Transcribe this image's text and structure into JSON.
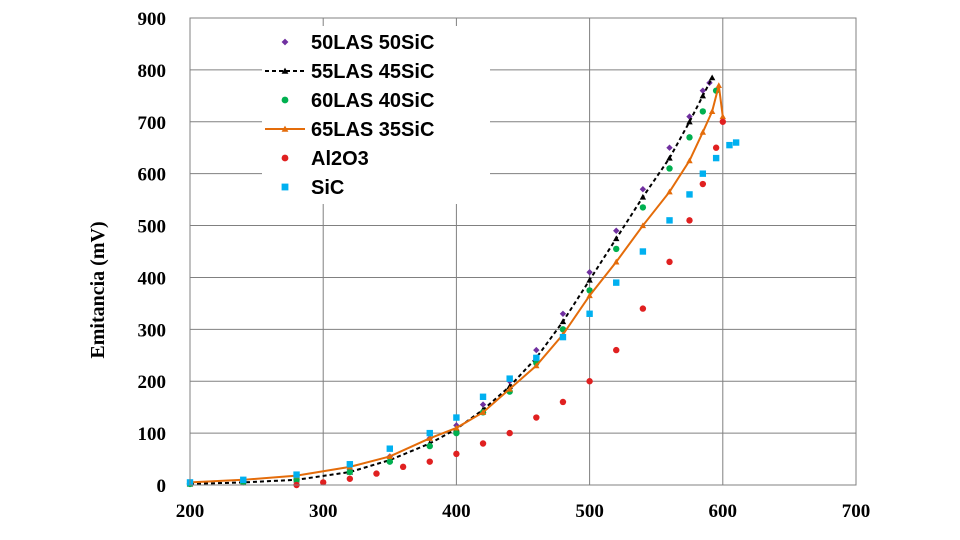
{
  "chart_data": {
    "type": "scatter",
    "title": "",
    "xlabel": "",
    "ylabel": "Emitancia (mV)",
    "xlim": [
      200,
      700
    ],
    "ylim": [
      0,
      900
    ],
    "x_ticks": [
      200,
      300,
      400,
      500,
      600,
      700
    ],
    "y_ticks": [
      0,
      100,
      200,
      300,
      400,
      500,
      600,
      700,
      800,
      900
    ],
    "grid": true,
    "legend_position": "top-left",
    "series": [
      {
        "name": "50LAS 50SiC",
        "color": "#7030A0",
        "marker": "diamond",
        "line": false,
        "x": [
          200,
          240,
          280,
          320,
          350,
          380,
          400,
          420,
          440,
          460,
          480,
          500,
          520,
          540,
          560,
          575,
          585,
          590
        ],
        "y": [
          3,
          6,
          12,
          30,
          55,
          90,
          115,
          155,
          200,
          260,
          330,
          410,
          490,
          570,
          650,
          710,
          760,
          775
        ]
      },
      {
        "name": "55LAS 45SiC",
        "color": "#000000",
        "marker": "triangle",
        "line": true,
        "dash": true,
        "x": [
          200,
          240,
          280,
          320,
          350,
          380,
          400,
          420,
          440,
          460,
          480,
          500,
          520,
          540,
          560,
          575,
          585,
          592
        ],
        "y": [
          2,
          5,
          10,
          25,
          48,
          80,
          108,
          145,
          190,
          245,
          315,
          395,
          475,
          555,
          630,
          700,
          750,
          785
        ]
      },
      {
        "name": "60LAS 40SiC",
        "color": "#00B050",
        "marker": "circle",
        "line": false,
        "x": [
          200,
          240,
          280,
          320,
          350,
          380,
          400,
          420,
          440,
          460,
          480,
          500,
          520,
          540,
          560,
          575,
          585,
          595
        ],
        "y": [
          2,
          5,
          10,
          25,
          45,
          75,
          100,
          140,
          180,
          235,
          300,
          375,
          455,
          535,
          610,
          670,
          720,
          760
        ]
      },
      {
        "name": "65LAS 35SiC",
        "color": "#E46C0A",
        "marker": "triangle",
        "line": true,
        "dash": false,
        "x": [
          200,
          240,
          280,
          320,
          350,
          380,
          400,
          420,
          440,
          460,
          480,
          500,
          520,
          540,
          560,
          575,
          585,
          592,
          597,
          600
        ],
        "y": [
          5,
          10,
          18,
          35,
          55,
          90,
          110,
          140,
          185,
          230,
          290,
          365,
          430,
          500,
          565,
          625,
          680,
          720,
          770,
          710
        ]
      },
      {
        "name": "Al2O3",
        "color": "#E02020",
        "marker": "circle",
        "line": false,
        "x": [
          280,
          300,
          320,
          340,
          360,
          380,
          400,
          420,
          440,
          460,
          480,
          500,
          520,
          540,
          560,
          575,
          585,
          595,
          600
        ],
        "y": [
          0,
          5,
          12,
          22,
          35,
          45,
          60,
          80,
          100,
          130,
          160,
          200,
          260,
          340,
          430,
          510,
          580,
          650,
          700
        ]
      },
      {
        "name": "SiC",
        "color": "#00B0F0",
        "marker": "square",
        "line": false,
        "x": [
          200,
          240,
          280,
          320,
          350,
          380,
          400,
          420,
          440,
          460,
          480,
          500,
          520,
          540,
          560,
          575,
          585,
          595,
          605,
          610
        ],
        "y": [
          5,
          10,
          20,
          40,
          70,
          100,
          130,
          170,
          205,
          245,
          285,
          330,
          390,
          450,
          510,
          560,
          600,
          630,
          655,
          660
        ]
      }
    ]
  }
}
